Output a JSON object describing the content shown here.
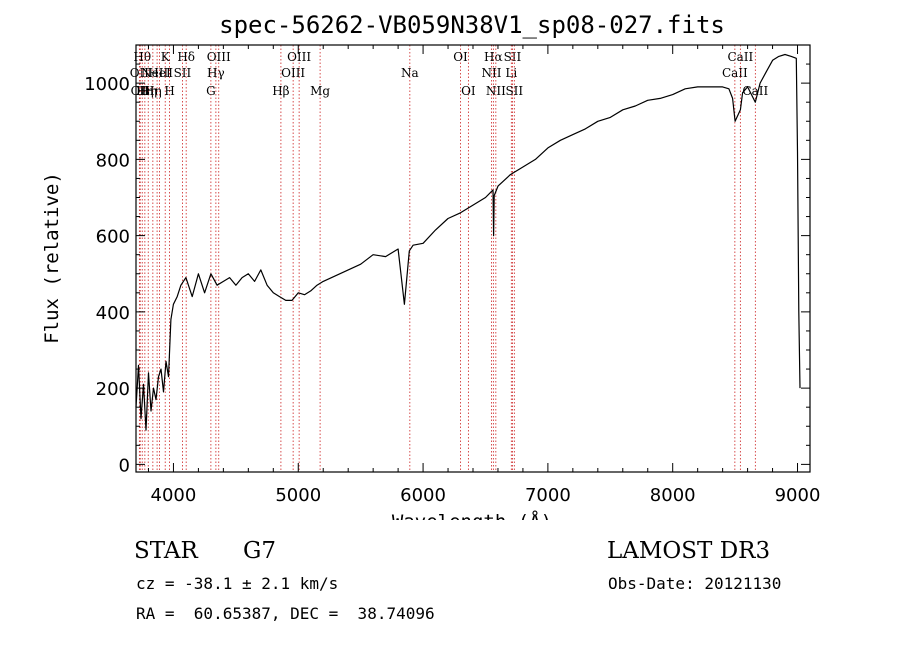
{
  "chart_data": {
    "type": "line",
    "title": "spec-56262-VB059N38V1_sp08-027.fits",
    "xlabel": "Wavelength (Å)",
    "ylabel": "Flux (relative)",
    "xlim": [
      3700,
      9100
    ],
    "ylim": [
      -20,
      1100
    ],
    "xticks": [
      4000,
      5000,
      6000,
      7000,
      8000,
      9000
    ],
    "yticks": [
      0,
      200,
      400,
      600,
      800,
      1000
    ],
    "grid": false,
    "series": [
      {
        "name": "flux",
        "x": [
          3700,
          3720,
          3740,
          3760,
          3780,
          3800,
          3820,
          3840,
          3860,
          3880,
          3900,
          3920,
          3940,
          3960,
          3980,
          4000,
          4030,
          4060,
          4100,
          4150,
          4200,
          4250,
          4300,
          4350,
          4400,
          4450,
          4500,
          4550,
          4600,
          4650,
          4700,
          4750,
          4800,
          4850,
          4900,
          4950,
          5000,
          5050,
          5100,
          5150,
          5200,
          5300,
          5400,
          5500,
          5600,
          5700,
          5800,
          5850,
          5890,
          5920,
          6000,
          6100,
          6200,
          6300,
          6400,
          6500,
          6560,
          6565,
          6570,
          6600,
          6700,
          6800,
          6900,
          7000,
          7100,
          7200,
          7300,
          7400,
          7500,
          7600,
          7700,
          7800,
          7900,
          8000,
          8100,
          8200,
          8300,
          8400,
          8450,
          8480,
          8500,
          8542,
          8560,
          8600,
          8662,
          8700,
          8750,
          8800,
          8850,
          8900,
          8950,
          8990,
          9000,
          9010,
          9020
        ],
        "y": [
          150,
          260,
          120,
          210,
          90,
          240,
          140,
          200,
          170,
          230,
          250,
          190,
          270,
          230,
          380,
          420,
          440,
          470,
          490,
          440,
          500,
          450,
          500,
          470,
          480,
          490,
          470,
          490,
          500,
          480,
          510,
          470,
          450,
          440,
          430,
          430,
          450,
          445,
          455,
          470,
          480,
          495,
          510,
          525,
          550,
          545,
          565,
          420,
          560,
          575,
          580,
          615,
          645,
          660,
          680,
          700,
          720,
          600,
          705,
          730,
          760,
          780,
          800,
          830,
          850,
          865,
          880,
          900,
          910,
          930,
          940,
          955,
          960,
          970,
          985,
          990,
          990,
          990,
          985,
          960,
          900,
          930,
          975,
          990,
          950,
          1000,
          1030,
          1060,
          1070,
          1075,
          1070,
          1065,
          820,
          400,
          200
        ]
      }
    ],
    "lines": [
      {
        "w": 3727,
        "label": "OII",
        "row": 2
      },
      {
        "w": 3734,
        "label": "OII",
        "row": 3
      },
      {
        "w": 3750,
        "label": "Hθ",
        "row": 1
      },
      {
        "w": 3771,
        "label": "Hη",
        "row": 3
      },
      {
        "w": 3798,
        "label": "Hη",
        "row": 3
      },
      {
        "w": 3835,
        "label": "Hη",
        "row": 3
      },
      {
        "w": 3869,
        "label": "NeIII",
        "row": 2
      },
      {
        "w": 3889,
        "label": "HeI",
        "row": 2
      },
      {
        "w": 3934,
        "label": "K",
        "row": 1
      },
      {
        "w": 3969,
        "label": "H",
        "row": 3
      },
      {
        "w": 4072,
        "label": "SII",
        "row": 2
      },
      {
        "w": 4102,
        "label": "Hδ",
        "row": 1
      },
      {
        "w": 4300,
        "label": "G",
        "row": 3
      },
      {
        "w": 4340,
        "label": "Hγ",
        "row": 2
      },
      {
        "w": 4363,
        "label": "OIII",
        "row": 1
      },
      {
        "w": 4861,
        "label": "Hβ",
        "row": 3
      },
      {
        "w": 4959,
        "label": "OIII",
        "row": 2
      },
      {
        "w": 5007,
        "label": "OIII",
        "row": 1
      },
      {
        "w": 5175,
        "label": "Mg",
        "row": 3
      },
      {
        "w": 5894,
        "label": "Na",
        "row": 2
      },
      {
        "w": 6300,
        "label": "OI",
        "row": 1
      },
      {
        "w": 6363,
        "label": "OI",
        "row": 3
      },
      {
        "w": 6548,
        "label": "NII",
        "row": 2
      },
      {
        "w": 6563,
        "label": "Hα",
        "row": 1
      },
      {
        "w": 6583,
        "label": "NII",
        "row": 3
      },
      {
        "w": 6707,
        "label": "Li",
        "row": 2
      },
      {
        "w": 6716,
        "label": "SII",
        "row": 1
      },
      {
        "w": 6731,
        "label": "SII",
        "row": 3
      },
      {
        "w": 8498,
        "label": "CaII",
        "row": 2
      },
      {
        "w": 8542,
        "label": "CaII",
        "row": 1
      },
      {
        "w": 8662,
        "label": "CaII",
        "row": 3
      }
    ]
  },
  "info": {
    "object": "STAR",
    "subclass": "G7",
    "survey": "LAMOST DR3",
    "cz": "cz = -38.1 ± 2.1 km/s",
    "obs_date": "Obs-Date: 20121130",
    "coords": "RA =  60.65387, DEC =  38.74096"
  },
  "colors": {
    "line_marker": "#cc2222",
    "spectrum": "#000000",
    "axes": "#000000"
  }
}
